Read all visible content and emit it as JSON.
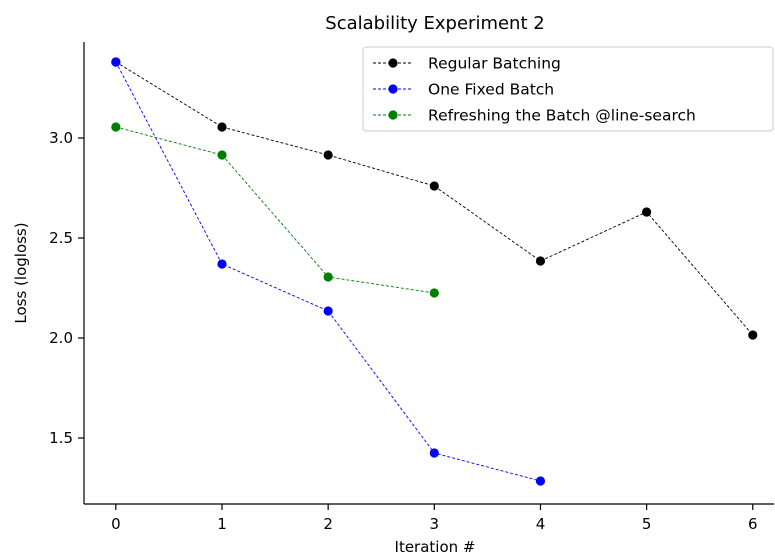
{
  "chart_data": {
    "type": "line",
    "title": "Scalability Experiment 2",
    "xlabel": "Iteration #",
    "ylabel": "Loss (logloss)",
    "xlim": [
      -0.3,
      6.2
    ],
    "ylim": [
      1.17,
      3.48
    ],
    "xticks": [
      0,
      1,
      2,
      3,
      4,
      5,
      6
    ],
    "xtick_labels": [
      "0",
      "1",
      "2",
      "3",
      "4",
      "5",
      "6"
    ],
    "yticks": [
      1.5,
      2.0,
      2.5,
      3.0
    ],
    "ytick_labels": [
      "1.5",
      "2.0",
      "2.5",
      "3.0"
    ],
    "grid": false,
    "legend_position": "top-right",
    "line_style": "dashed",
    "marker": "circle",
    "series": [
      {
        "name": "Regular Batching",
        "color": "#000000",
        "x": [
          0,
          1,
          2,
          3,
          4,
          5,
          6
        ],
        "y": [
          3.38,
          3.055,
          2.915,
          2.76,
          2.385,
          2.63,
          2.015
        ]
      },
      {
        "name": "One Fixed Batch",
        "color": "#0000ff",
        "x": [
          0,
          1,
          2,
          3,
          4
        ],
        "y": [
          3.38,
          2.37,
          2.135,
          1.425,
          1.285
        ]
      },
      {
        "name": "Refreshing the Batch @line-search",
        "color": "#008000",
        "x": [
          0,
          1,
          2,
          3
        ],
        "y": [
          3.055,
          2.915,
          2.305,
          2.225
        ]
      }
    ]
  }
}
